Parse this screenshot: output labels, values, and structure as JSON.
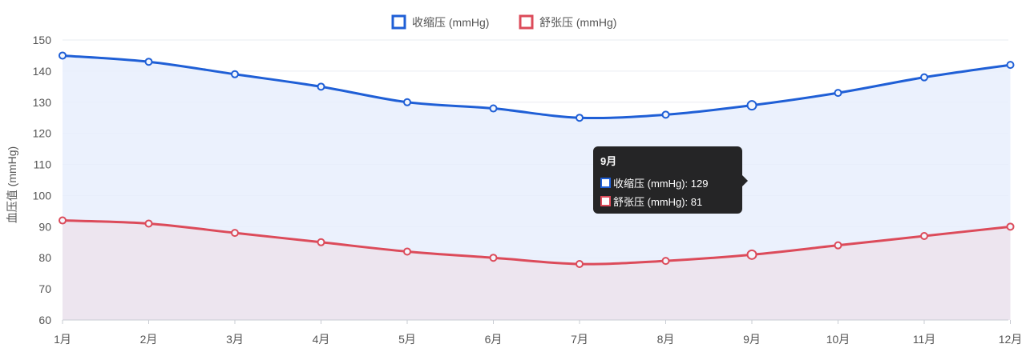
{
  "chart_data": {
    "type": "line",
    "categories": [
      "1月",
      "2月",
      "3月",
      "4月",
      "5月",
      "6月",
      "7月",
      "8月",
      "9月",
      "10月",
      "11月",
      "12月"
    ],
    "series": [
      {
        "name": "收缩压 (mmHg)",
        "values": [
          145,
          143,
          139,
          135,
          130,
          128,
          125,
          126,
          129,
          133,
          138,
          142
        ],
        "color": "#1f5fd6",
        "fill": "#e8effd"
      },
      {
        "name": "舒张压 (mmHg)",
        "values": [
          92,
          91,
          88,
          85,
          82,
          80,
          78,
          79,
          81,
          84,
          87,
          90
        ],
        "color": "#dc4b5a",
        "fill": "#ede3ec"
      }
    ],
    "ylabel": "血压值 (mmHg)",
    "ylim": [
      60,
      150
    ],
    "yticks": [
      60,
      70,
      80,
      90,
      100,
      110,
      120,
      130,
      140,
      150
    ],
    "grid": true,
    "legend": "top-center",
    "tooltip": {
      "title": "9月",
      "rows": [
        "收缩压 (mmHg): 129",
        "舒张压 (mmHg): 81"
      ]
    }
  }
}
